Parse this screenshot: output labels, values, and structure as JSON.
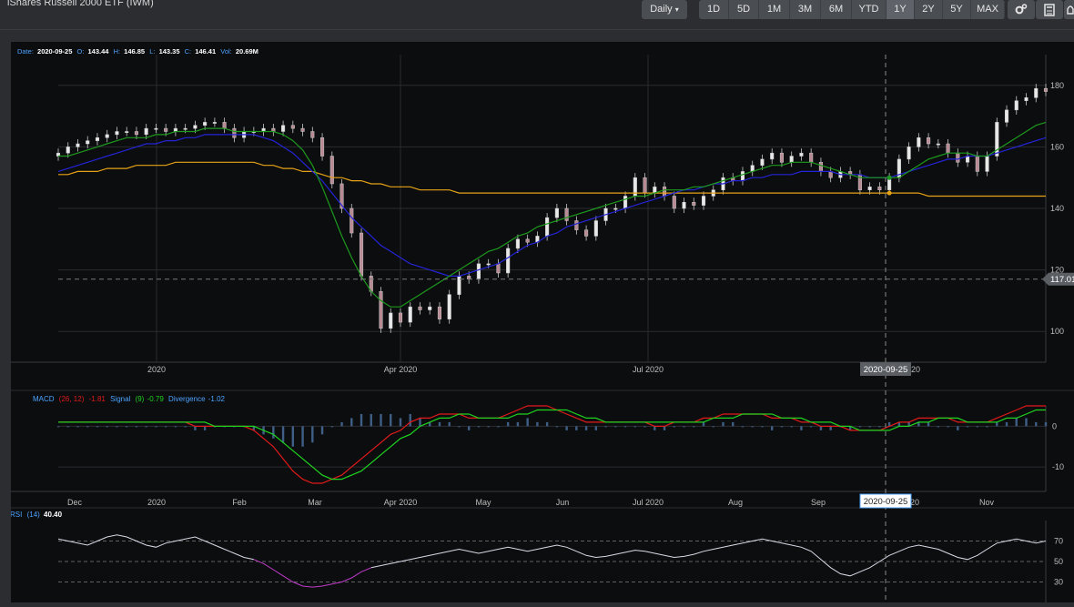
{
  "header": {
    "title": "iShares Russell 2000 ETF (IWM)",
    "interval": "Daily",
    "ranges": [
      "1D",
      "5D",
      "1M",
      "3M",
      "6M",
      "YTD",
      "1Y",
      "2Y",
      "5Y",
      "MAX"
    ],
    "active_range": "1Y"
  },
  "price_panel": {
    "date_label": "Date:",
    "date": "2020-09-25",
    "o_label": "O:",
    "open": "143.44",
    "h_label": "H:",
    "high": "146.85",
    "l_label": "L:",
    "low": "143.35",
    "c_label": "C:",
    "close": "146.41",
    "vol_label": "Vol:",
    "volume": "20.69M",
    "y_ticks": [
      "180",
      "160",
      "140",
      "120",
      "100"
    ],
    "x_ticks": [
      "2020",
      "Apr 2020",
      "Jul 2020"
    ],
    "crosshair_date": "2020-09-25",
    "crosshair_price": "117.01",
    "cut_tick": "20"
  },
  "macd_panel": {
    "name": "MACD",
    "params": "(26, 12)",
    "macd_value": "-1.81",
    "signal_label": "Signal",
    "signal_params": "(9)",
    "signal_value": "-0.79",
    "div_label": "Divergence",
    "div_value": "-1.02",
    "y_ticks": [
      "0",
      "-10"
    ],
    "x_ticks": [
      "Dec",
      "2020",
      "Feb",
      "Mar",
      "Apr 2020",
      "May",
      "Jun",
      "Jul 2020",
      "Aug",
      "Sep",
      "Nov"
    ],
    "crosshair_date": "2020-09-25",
    "cut_tick": "20"
  },
  "rsi_panel": {
    "name": "RSI",
    "params": "(14)",
    "value": "40.40",
    "y_ticks": [
      "70",
      "50",
      "30"
    ]
  },
  "colors": {
    "macd": "#e21a1a",
    "signal": "#1fd41f",
    "ma_fast": "#1d9a1d",
    "ma_mid": "#2424d6",
    "ma_slow": "#e6a217",
    "rsi": "#d9d9e6",
    "rsi_oversold": "#c23ccc",
    "label_blue": "#4da3ff",
    "price": "#d8d8d8"
  },
  "chart_data": [
    {
      "type": "candlestick",
      "x_range": [
        "2019-11-26",
        "2020-11-27"
      ],
      "ylim": [
        90,
        190
      ],
      "close": [
        158,
        160,
        161,
        162,
        163,
        164,
        165,
        165,
        164,
        166,
        166,
        165,
        166,
        166,
        167,
        168,
        168,
        166,
        163,
        165,
        165,
        166,
        165,
        167,
        166,
        165,
        163,
        157,
        148,
        140,
        132,
        118,
        113,
        101,
        106,
        103,
        108,
        107,
        108,
        104,
        112,
        118,
        117,
        122,
        122,
        119,
        127,
        130,
        129,
        131,
        137,
        140,
        136,
        133,
        131,
        136,
        140,
        140,
        144,
        150,
        145,
        147,
        144,
        140,
        142,
        141,
        144,
        146,
        150,
        149,
        152,
        154,
        156,
        158,
        155,
        157,
        158,
        155,
        152,
        150,
        152,
        151,
        146,
        147,
        146,
        150,
        156,
        160,
        163,
        161,
        161,
        158,
        155,
        157,
        152,
        157,
        168,
        172,
        175,
        176,
        179,
        178
      ],
      "ma_fast": [
        157,
        157,
        158,
        159,
        160,
        161,
        162,
        163,
        163,
        163,
        164,
        164,
        165,
        165,
        165,
        166,
        166,
        166,
        165,
        165,
        165,
        165,
        165,
        164,
        162,
        159,
        154,
        147,
        139,
        131,
        124,
        118,
        113,
        110,
        108,
        108,
        110,
        112,
        114,
        116,
        118,
        120,
        122,
        124,
        126,
        127,
        129,
        131,
        132,
        134,
        135,
        136,
        137,
        138,
        139,
        140,
        141,
        142,
        143,
        144,
        144,
        145,
        146,
        146,
        146,
        147,
        147,
        148,
        149,
        150,
        151,
        152,
        153,
        154,
        154,
        155,
        155,
        155,
        154,
        153,
        152,
        151,
        150,
        150,
        150,
        150,
        150,
        152,
        154,
        156,
        157,
        158,
        158,
        158,
        157,
        157,
        159,
        161,
        163,
        165,
        167,
        168
      ],
      "ma_mid": [
        152,
        153,
        154,
        155,
        156,
        157,
        158,
        159,
        160,
        161,
        161,
        162,
        162,
        163,
        163,
        164,
        164,
        164,
        164,
        164,
        164,
        163,
        162,
        160,
        158,
        155,
        152,
        149,
        145,
        141,
        137,
        134,
        131,
        128,
        126,
        124,
        122,
        121,
        120,
        119,
        118,
        118,
        119,
        120,
        121,
        122,
        124,
        126,
        128,
        129,
        131,
        132,
        134,
        135,
        136,
        137,
        138,
        139,
        140,
        141,
        142,
        143,
        144,
        145,
        146,
        146,
        147,
        148,
        148,
        149,
        149,
        150,
        150,
        151,
        151,
        151,
        152,
        152,
        152,
        152,
        151,
        151,
        151,
        150,
        150,
        150,
        151,
        152,
        153,
        154,
        155,
        156,
        156,
        157,
        157,
        157,
        158,
        159,
        160,
        161,
        162,
        163
      ],
      "ma_slow": [
        151,
        151,
        152,
        152,
        152,
        153,
        153,
        153,
        154,
        154,
        154,
        154,
        155,
        155,
        155,
        155,
        155,
        155,
        155,
        155,
        155,
        154,
        154,
        153,
        153,
        152,
        152,
        151,
        150,
        150,
        149,
        149,
        148,
        148,
        147,
        147,
        147,
        146,
        146,
        146,
        146,
        145,
        145,
        145,
        145,
        145,
        145,
        145,
        145,
        145,
        145,
        145,
        145,
        145,
        145,
        145,
        145,
        145,
        145,
        145,
        145,
        145,
        145,
        145,
        145,
        145,
        145,
        145,
        145,
        145,
        145,
        145,
        145,
        145,
        145,
        145,
        145,
        145,
        145,
        145,
        145,
        145,
        145,
        145,
        145,
        145,
        145,
        145,
        145,
        144,
        144,
        144,
        144,
        144,
        144,
        144,
        144,
        144,
        144,
        144,
        144,
        144
      ],
      "crosshair_price": 117.01
    },
    {
      "type": "line",
      "name": "MACD",
      "ylim": [
        -16,
        5
      ],
      "series": [
        {
          "name": "MACD",
          "values": [
            1,
            1,
            1,
            1,
            1,
            1,
            1,
            1,
            1,
            1,
            1,
            1,
            1,
            1,
            0,
            0,
            0,
            0,
            0,
            0,
            -1,
            -3,
            -5,
            -8,
            -11,
            -13,
            -14,
            -14,
            -13,
            -12,
            -10,
            -8,
            -6,
            -4,
            -2,
            -1,
            1,
            2,
            2,
            3,
            3,
            3,
            2,
            2,
            2,
            2,
            3,
            4,
            5,
            5,
            5,
            4,
            3,
            2,
            1,
            1,
            1,
            1,
            1,
            1,
            1,
            0,
            0,
            1,
            1,
            1,
            2,
            2,
            3,
            3,
            3,
            3,
            3,
            2,
            2,
            2,
            1,
            1,
            0,
            0,
            0,
            -1,
            -1,
            -1,
            -1,
            0,
            1,
            1,
            2,
            2,
            2,
            2,
            1,
            1,
            1,
            1,
            2,
            3,
            4,
            5,
            5,
            5
          ]
        },
        {
          "name": "Signal",
          "values": [
            1,
            1,
            1,
            1,
            1,
            1,
            1,
            1,
            1,
            1,
            1,
            1,
            1,
            1,
            1,
            1,
            0,
            0,
            0,
            0,
            0,
            -1,
            -2,
            -4,
            -6,
            -8,
            -10,
            -12,
            -13,
            -13,
            -12,
            -11,
            -9,
            -7,
            -5,
            -3,
            -2,
            0,
            1,
            2,
            2,
            3,
            3,
            2,
            2,
            2,
            2,
            3,
            3,
            4,
            4,
            4,
            4,
            3,
            2,
            2,
            1,
            1,
            1,
            1,
            1,
            1,
            1,
            1,
            1,
            1,
            1,
            2,
            2,
            2,
            3,
            3,
            3,
            3,
            2,
            2,
            2,
            1,
            1,
            1,
            0,
            0,
            -1,
            -1,
            -1,
            -1,
            0,
            0,
            1,
            1,
            2,
            2,
            2,
            1,
            1,
            1,
            1,
            2,
            2,
            3,
            4,
            4
          ]
        }
      ]
    },
    {
      "type": "line",
      "name": "RSI",
      "ylim": [
        10,
        90
      ],
      "series": [
        {
          "name": "RSI",
          "values": [
            72,
            70,
            68,
            66,
            70,
            74,
            76,
            74,
            70,
            66,
            64,
            68,
            70,
            72,
            74,
            70,
            66,
            62,
            58,
            54,
            52,
            48,
            42,
            36,
            30,
            26,
            25,
            26,
            28,
            30,
            34,
            40,
            44,
            46,
            48,
            50,
            52,
            54,
            56,
            58,
            60,
            62,
            60,
            58,
            60,
            62,
            64,
            62,
            60,
            62,
            64,
            66,
            64,
            60,
            56,
            54,
            55,
            57,
            59,
            61,
            60,
            58,
            56,
            54,
            55,
            57,
            60,
            62,
            64,
            66,
            68,
            70,
            72,
            70,
            68,
            66,
            64,
            60,
            52,
            44,
            38,
            36,
            40,
            44,
            50,
            56,
            60,
            64,
            66,
            64,
            62,
            58,
            54,
            52,
            56,
            62,
            68,
            70,
            72,
            70,
            68,
            70
          ]
        }
      ],
      "levels": [
        70,
        50,
        30
      ]
    }
  ]
}
